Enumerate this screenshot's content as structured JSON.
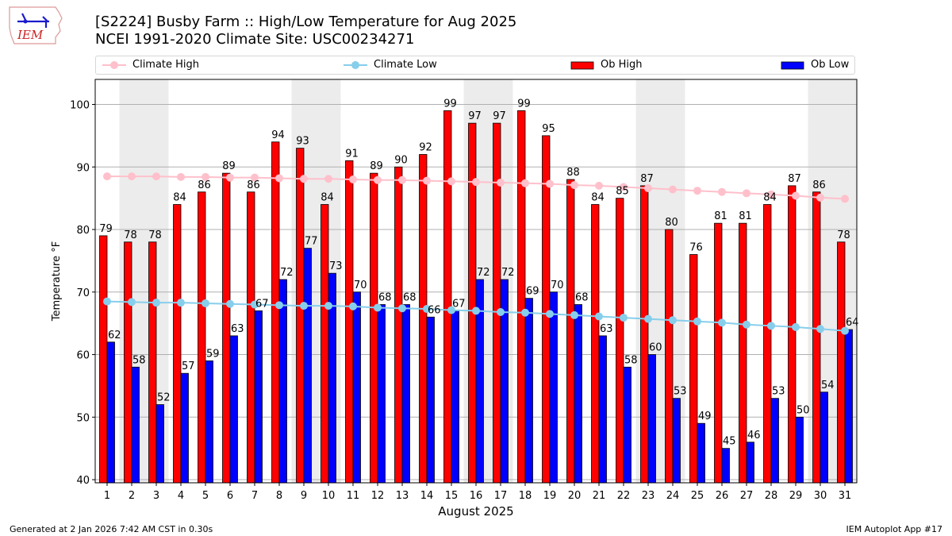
{
  "header": {
    "logo_text": "IEM",
    "title_line1": "[S2224] Busby Farm :: High/Low Temperature for Aug 2025",
    "title_line2": "NCEI 1991-2020 Climate Site: USC00234271"
  },
  "legend": {
    "items": [
      {
        "label": "Climate High",
        "kind": "line-marker",
        "color": "#ffc0cb"
      },
      {
        "label": "Climate Low",
        "kind": "line-marker",
        "color": "#87ceeb"
      },
      {
        "label": "Ob High",
        "kind": "bar",
        "color": "#ff0000"
      },
      {
        "label": "Ob Low",
        "kind": "bar",
        "color": "#0000ff"
      }
    ]
  },
  "footer": {
    "left": "Generated at 2 Jan 2026 7:42 AM CST in 0.30s",
    "right": "IEM Autoplot App #17"
  },
  "chart_data": {
    "type": "bar",
    "title": "[S2224] Busby Farm :: High/Low Temperature for Aug 2025",
    "subtitle": "NCEI 1991-2020 Climate Site: USC00234271",
    "xlabel": "August 2025",
    "ylabel": "Temperature °F",
    "ylim": [
      39.5,
      104
    ],
    "yticks": [
      40,
      50,
      60,
      70,
      80,
      90,
      100
    ],
    "grid": "y",
    "legend_position": "top",
    "categories": [
      "1",
      "2",
      "3",
      "4",
      "5",
      "6",
      "7",
      "8",
      "9",
      "10",
      "11",
      "12",
      "13",
      "14",
      "15",
      "16",
      "17",
      "18",
      "19",
      "20",
      "21",
      "22",
      "23",
      "24",
      "25",
      "26",
      "27",
      "28",
      "29",
      "30",
      "31"
    ],
    "weekend_days": [
      2,
      3,
      9,
      10,
      16,
      17,
      23,
      24,
      30,
      31
    ],
    "series": [
      {
        "name": "Ob High",
        "type": "bar",
        "color": "#ff0000",
        "values": [
          79,
          78,
          78,
          84,
          86,
          89,
          86,
          94,
          93,
          84,
          91,
          89,
          90,
          92,
          99,
          97,
          97,
          99,
          95,
          88,
          84,
          85,
          87,
          80,
          76,
          81,
          81,
          84,
          87,
          86,
          78
        ]
      },
      {
        "name": "Ob Low",
        "type": "bar",
        "color": "#0000ff",
        "values": [
          62,
          58,
          52,
          57,
          59,
          63,
          67,
          72,
          77,
          73,
          70,
          68,
          68,
          66,
          67,
          72,
          72,
          69,
          70,
          68,
          63,
          58,
          60,
          53,
          49,
          45,
          46,
          53,
          50,
          54,
          64
        ]
      },
      {
        "name": "Climate High",
        "type": "line",
        "color": "#ffc0cb",
        "values": [
          88.5,
          88.5,
          88.5,
          88.4,
          88.4,
          88.3,
          88.3,
          88.2,
          88.1,
          88.1,
          88.0,
          87.9,
          87.9,
          87.8,
          87.7,
          87.6,
          87.5,
          87.4,
          87.3,
          87.1,
          87.0,
          86.8,
          86.6,
          86.4,
          86.2,
          86.0,
          85.8,
          85.6,
          85.4,
          85.1,
          84.9
        ]
      },
      {
        "name": "Climate Low",
        "type": "line",
        "color": "#87ceeb",
        "values": [
          68.5,
          68.4,
          68.3,
          68.3,
          68.2,
          68.1,
          68.0,
          67.9,
          67.8,
          67.8,
          67.7,
          67.5,
          67.4,
          67.3,
          67.1,
          67.0,
          66.8,
          66.7,
          66.5,
          66.3,
          66.1,
          65.9,
          65.7,
          65.5,
          65.3,
          65.1,
          64.8,
          64.6,
          64.4,
          64.1,
          63.8
        ]
      }
    ]
  }
}
